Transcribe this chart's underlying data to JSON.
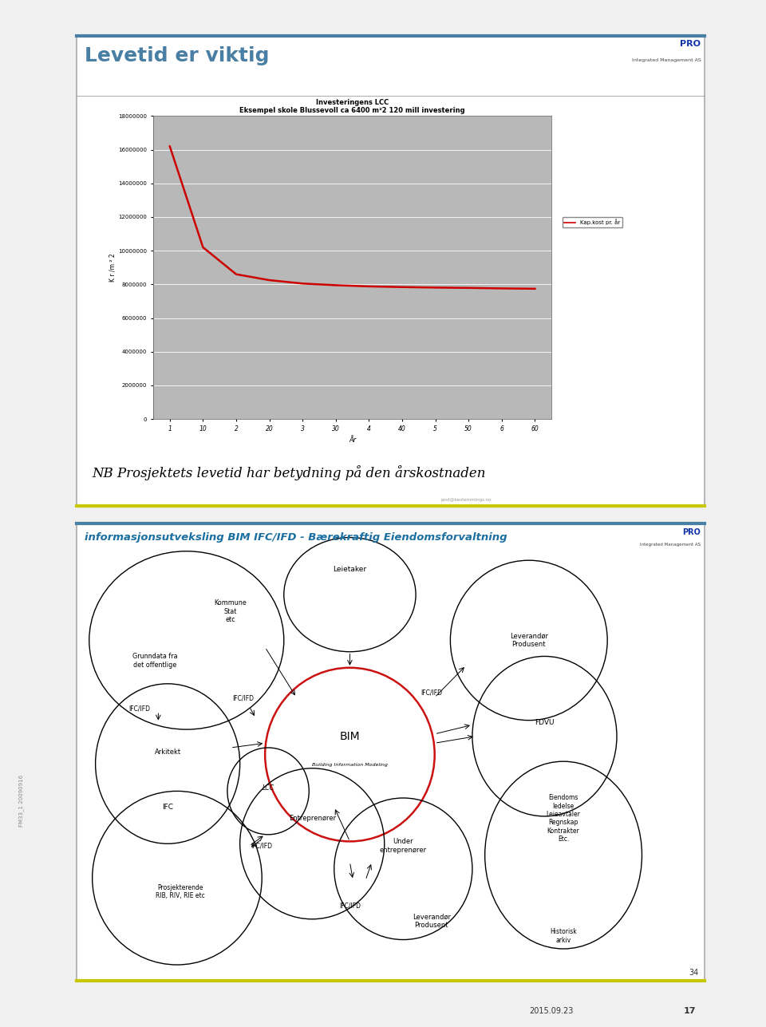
{
  "page_bg": "#f0f0f0",
  "slide1": {
    "bg": "#ffffff",
    "border_color_top": "#4a7fa5",
    "border_color_bottom": "#c8c800",
    "title": "Levetid er viktig",
    "title_color": "#4a7fa5",
    "title_fontsize": 18,
    "chart_title1": "Investeringens LCC",
    "chart_title2": "Eksempel skole Blussevoll ca 6400 m²2 120 mill investering",
    "ylabel": "K r /m ² 2",
    "xlabel": "År",
    "chart_bg": "#b8b8b8",
    "line_color": "#cc0000",
    "legend_label": "Kap.kost pr. år",
    "x_labels": [
      "1",
      "10",
      "2",
      "20",
      "3",
      "30",
      "4",
      "40",
      "5",
      "50",
      "6",
      "60"
    ],
    "x_numeric": [
      1,
      2,
      3,
      4,
      5,
      6,
      7,
      8,
      9,
      10,
      11,
      12
    ],
    "y_values": [
      16200000,
      10200000,
      8600000,
      8250000,
      8050000,
      7950000,
      7880000,
      7840000,
      7810000,
      7790000,
      7760000,
      7740000
    ],
    "yticks": [
      0,
      2000000,
      4000000,
      6000000,
      8000000,
      10000000,
      12000000,
      14000000,
      16000000,
      18000000
    ],
    "note": "NB Prosjektets levetid har betydning på den årskostnaden",
    "note_fontsize": 12,
    "pro_text": "PRO",
    "pro_sub": "Integrated Management AS",
    "footer_text": "post@bestemmings.no"
  },
  "slide2": {
    "bg": "#ffffff",
    "border_color_top": "#4a7fa5",
    "border_color_bottom": "#c8c800",
    "title": "informasjonsutveksling BIM IFC/IFD - Bærekraftig Eiendomsforvaltning",
    "title_color": "#1a6ea0",
    "title_fontsize": 9.5,
    "pro_text": "PRO",
    "pro_sub": "Integrated Management AS",
    "slide_num": "34",
    "footer_date": "2015.09.23",
    "footer_page": "17"
  }
}
